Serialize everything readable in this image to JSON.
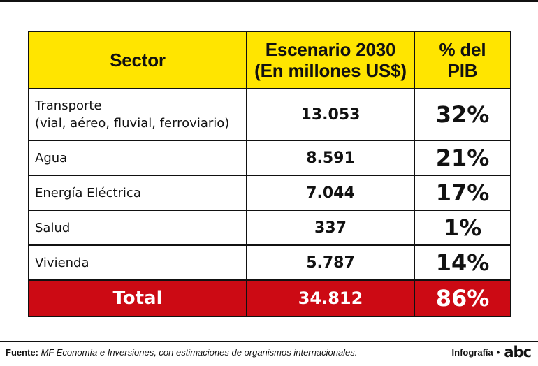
{
  "chart_data": {
    "type": "table",
    "columns": [
      "Sector",
      "Escenario 2030",
      "(En millones US$)",
      "% del",
      "PIB"
    ],
    "rows": [
      {
        "sector_line1": "Transporte",
        "sector_line2": "(vial, aéreo, fluvial, ferroviario)",
        "value": "13.053",
        "pct": "32%"
      },
      {
        "sector_line1": "Agua",
        "value": "8.591",
        "pct": "21%"
      },
      {
        "sector_line1": "Energía Eléctrica",
        "value": "7.044",
        "pct": "17%"
      },
      {
        "sector_line1": "Salud",
        "value": "337",
        "pct": "1%"
      },
      {
        "sector_line1": "Vivienda",
        "value": "5.787",
        "pct": "14%"
      }
    ],
    "total": {
      "label": "Total",
      "value": "34.812",
      "pct": "86%"
    }
  },
  "footer": {
    "source_label": "Fuente:",
    "source_text": "MF Economía e Inversiones, con estimaciones de organismos internacionales.",
    "credit_label": "Infografía",
    "credit_dot": "•",
    "logo_text": "abc"
  },
  "colors": {
    "header_bg": "#ffe500",
    "total_bg": "#cc0a14",
    "border": "#111111"
  }
}
